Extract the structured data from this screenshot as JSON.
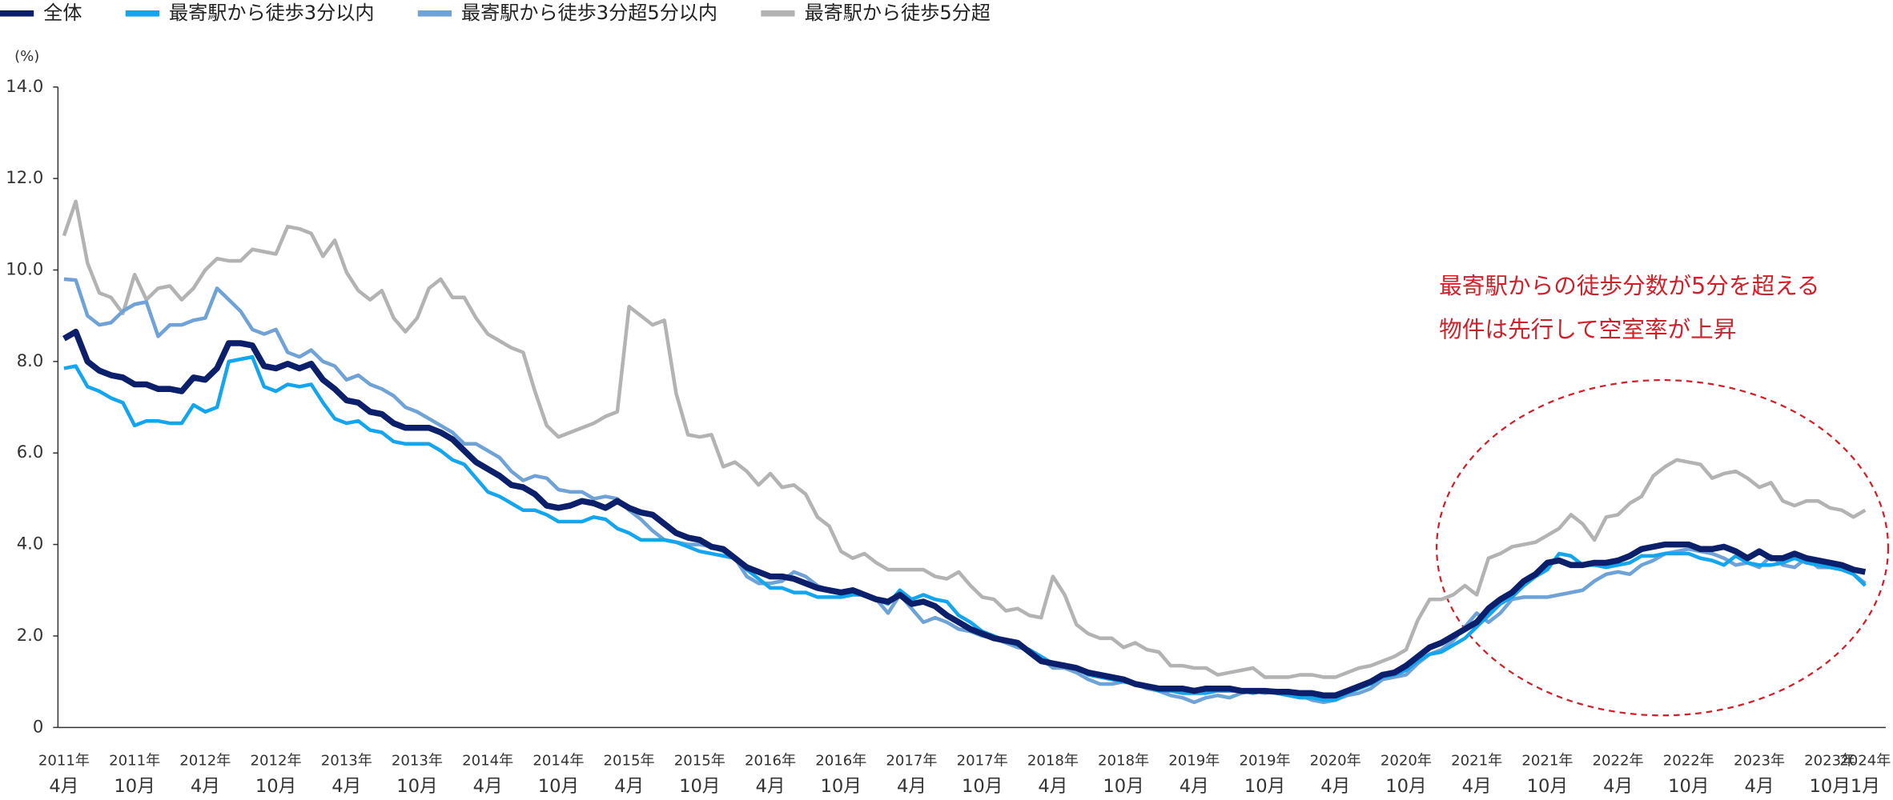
{
  "chart_data": {
    "type": "line",
    "y_unit": "(%)",
    "annotation": [
      "最寄駅からの徒歩分数が5分を超える",
      "物件は先行して空室率が上昇"
    ],
    "ylim": [
      0,
      14
    ],
    "yticks": [
      0,
      {
        "value": 2,
        "label": "2.0"
      },
      {
        "value": 4,
        "label": "4.0"
      },
      {
        "value": 6,
        "label": "6.0"
      },
      {
        "value": 8,
        "label": "8.0"
      },
      {
        "value": 10,
        "label": "10.0"
      },
      {
        "value": 12,
        "label": "12.0"
      },
      {
        "value": 14,
        "label": "14.0"
      }
    ],
    "categories": [
      "2011年\n4月",
      null,
      null,
      null,
      null,
      null,
      "2011年\n10月",
      null,
      null,
      null,
      null,
      null,
      "2012年\n4月",
      null,
      null,
      null,
      null,
      null,
      "2012年\n10月",
      null,
      null,
      null,
      null,
      null,
      "2013年\n4月",
      null,
      null,
      null,
      null,
      null,
      "2013年\n10月",
      null,
      null,
      null,
      null,
      null,
      "2014年\n4月",
      null,
      null,
      null,
      null,
      null,
      "2014年\n10月",
      null,
      null,
      null,
      null,
      null,
      "2015年\n4月",
      null,
      null,
      null,
      null,
      null,
      "2015年\n10月",
      null,
      null,
      null,
      null,
      null,
      "2016年\n4月",
      null,
      null,
      null,
      null,
      null,
      "2016年\n10月",
      null,
      null,
      null,
      null,
      null,
      "2017年\n4月",
      null,
      null,
      null,
      null,
      null,
      "2017年\n10月",
      null,
      null,
      null,
      null,
      null,
      "2018年\n4月",
      null,
      null,
      null,
      null,
      null,
      "2018年\n10月",
      null,
      null,
      null,
      null,
      null,
      "2019年\n4月",
      null,
      null,
      null,
      null,
      null,
      "2019年\n10月",
      null,
      null,
      null,
      null,
      null,
      "2020年\n4月",
      null,
      null,
      null,
      null,
      null,
      "2020年\n10月",
      null,
      null,
      null,
      null,
      null,
      "2021年\n4月",
      null,
      null,
      null,
      null,
      null,
      "2021年\n10月",
      null,
      null,
      null,
      null,
      null,
      "2022年\n4月",
      null,
      null,
      null,
      null,
      null,
      "2022年\n10月",
      null,
      null,
      null,
      null,
      null,
      "2023年\n4月",
      null,
      null,
      null,
      null,
      null,
      "2023年\n10月",
      null,
      null,
      "2024年\n1月"
    ],
    "series": [
      {
        "name": "全体",
        "color": "#0b1f6b",
        "width": 5,
        "values": [
          8.5,
          8.65,
          8.0,
          7.8,
          7.7,
          7.65,
          7.5,
          7.5,
          7.4,
          7.4,
          7.35,
          7.65,
          7.6,
          7.85,
          8.4,
          8.4,
          8.35,
          7.9,
          7.85,
          7.95,
          7.85,
          7.95,
          7.6,
          7.4,
          7.15,
          7.1,
          6.9,
          6.85,
          6.65,
          6.55,
          6.55,
          6.55,
          6.45,
          6.3,
          6.05,
          5.8,
          5.65,
          5.5,
          5.3,
          5.25,
          5.1,
          4.85,
          4.8,
          4.85,
          4.95,
          4.9,
          4.8,
          4.95,
          4.8,
          4.7,
          4.65,
          4.45,
          4.25,
          4.15,
          4.1,
          3.95,
          3.9,
          3.7,
          3.5,
          3.4,
          3.3,
          3.3,
          3.25,
          3.15,
          3.05,
          3.0,
          2.95,
          3.0,
          2.9,
          2.8,
          2.75,
          2.9,
          2.7,
          2.75,
          2.65,
          2.45,
          2.3,
          2.15,
          2.05,
          1.95,
          1.9,
          1.85,
          1.65,
          1.45,
          1.4,
          1.35,
          1.3,
          1.2,
          1.15,
          1.1,
          1.05,
          0.95,
          0.9,
          0.85,
          0.85,
          0.85,
          0.8,
          0.85,
          0.85,
          0.85,
          0.8,
          0.8,
          0.8,
          0.78,
          0.78,
          0.75,
          0.75,
          0.7,
          0.7,
          0.8,
          0.9,
          1.0,
          1.15,
          1.2,
          1.35,
          1.55,
          1.75,
          1.85,
          2.0,
          2.15,
          2.3,
          2.6,
          2.8,
          2.95,
          3.2,
          3.35,
          3.6,
          3.65,
          3.55,
          3.55,
          3.6,
          3.6,
          3.65,
          3.75,
          3.9,
          3.95,
          4.0,
          4.0,
          4.0,
          3.9,
          3.9,
          3.95,
          3.85,
          3.7,
          3.85,
          3.7,
          3.7,
          3.8,
          3.7,
          3.65,
          3.6,
          3.55,
          3.45,
          3.4
        ]
      },
      {
        "name": "最寄駅から徒歩3分以内",
        "color": "#13a6ee",
        "width": 3,
        "values": [
          7.85,
          7.9,
          7.45,
          7.35,
          7.2,
          7.1,
          6.6,
          6.7,
          6.7,
          6.65,
          6.65,
          7.05,
          6.9,
          7.0,
          8.0,
          8.05,
          8.1,
          7.45,
          7.35,
          7.5,
          7.45,
          7.5,
          7.1,
          6.75,
          6.65,
          6.7,
          6.5,
          6.45,
          6.25,
          6.2,
          6.2,
          6.2,
          6.05,
          5.85,
          5.75,
          5.45,
          5.15,
          5.05,
          4.9,
          4.75,
          4.75,
          4.65,
          4.5,
          4.5,
          4.5,
          4.6,
          4.55,
          4.35,
          4.25,
          4.1,
          4.1,
          4.1,
          4.05,
          3.95,
          3.85,
          3.8,
          3.75,
          3.7,
          3.45,
          3.25,
          3.05,
          3.05,
          2.95,
          2.95,
          2.85,
          2.85,
          2.85,
          2.9,
          2.9,
          2.8,
          2.7,
          3.0,
          2.8,
          2.9,
          2.8,
          2.75,
          2.45,
          2.3,
          2.1,
          2.0,
          1.9,
          1.8,
          1.7,
          1.55,
          1.4,
          1.35,
          1.3,
          1.15,
          1.1,
          1.05,
          1.0,
          0.95,
          0.9,
          0.8,
          0.8,
          0.75,
          0.75,
          0.75,
          0.8,
          0.8,
          0.8,
          0.75,
          0.8,
          0.75,
          0.7,
          0.65,
          0.65,
          0.6,
          0.6,
          0.75,
          0.85,
          0.95,
          1.1,
          1.15,
          1.25,
          1.45,
          1.6,
          1.65,
          1.8,
          1.95,
          2.2,
          2.45,
          2.7,
          2.85,
          3.1,
          3.3,
          3.45,
          3.8,
          3.75,
          3.55,
          3.55,
          3.5,
          3.55,
          3.6,
          3.75,
          3.75,
          3.8,
          3.8,
          3.8,
          3.7,
          3.65,
          3.55,
          3.75,
          3.6,
          3.55,
          3.55,
          3.6,
          3.7,
          3.6,
          3.55,
          3.5,
          3.45,
          3.35,
          3.1
        ]
      },
      {
        "name": "最寄駅から徒歩3分超5分以内",
        "color": "#6fa2d6",
        "width": 3,
        "values": [
          9.8,
          9.78,
          9.0,
          8.8,
          8.85,
          9.1,
          9.25,
          9.3,
          8.55,
          8.8,
          8.8,
          8.9,
          8.95,
          9.6,
          9.35,
          9.1,
          8.7,
          8.6,
          8.7,
          8.2,
          8.1,
          8.25,
          8.0,
          7.9,
          7.6,
          7.7,
          7.5,
          7.4,
          7.25,
          7.0,
          6.9,
          6.75,
          6.6,
          6.45,
          6.2,
          6.2,
          6.05,
          5.9,
          5.6,
          5.4,
          5.5,
          5.45,
          5.2,
          5.15,
          5.15,
          5.0,
          5.05,
          5.0,
          4.75,
          4.55,
          4.3,
          4.1,
          4.05,
          4.0,
          4.0,
          3.95,
          3.85,
          3.7,
          3.3,
          3.15,
          3.15,
          3.2,
          3.4,
          3.3,
          3.1,
          3.0,
          2.95,
          3.0,
          2.9,
          2.8,
          2.5,
          2.9,
          2.6,
          2.3,
          2.4,
          2.3,
          2.15,
          2.1,
          2.0,
          1.95,
          1.85,
          1.75,
          1.7,
          1.5,
          1.3,
          1.3,
          1.2,
          1.05,
          0.95,
          0.95,
          1.0,
          0.95,
          0.85,
          0.8,
          0.7,
          0.65,
          0.55,
          0.65,
          0.7,
          0.65,
          0.75,
          0.8,
          0.75,
          0.8,
          0.7,
          0.7,
          0.6,
          0.55,
          0.6,
          0.7,
          0.75,
          0.85,
          1.05,
          1.1,
          1.15,
          1.4,
          1.6,
          1.7,
          1.9,
          2.2,
          2.5,
          2.3,
          2.5,
          2.8,
          2.85,
          2.85,
          2.85,
          2.9,
          2.95,
          3.0,
          3.2,
          3.35,
          3.4,
          3.35,
          3.55,
          3.65,
          3.8,
          3.85,
          3.9,
          3.85,
          3.8,
          3.7,
          3.55,
          3.6,
          3.5,
          3.75,
          3.55,
          3.5,
          3.7,
          3.5,
          3.5,
          3.45,
          3.35,
          3.15
        ]
      },
      {
        "name": "最寄駅から徒歩5分超",
        "color": "#b3b3b3",
        "width": 3,
        "values": [
          10.75,
          11.5,
          10.15,
          9.5,
          9.4,
          9.05,
          9.9,
          9.35,
          9.6,
          9.65,
          9.35,
          9.6,
          10.0,
          10.25,
          10.2,
          10.2,
          10.45,
          10.4,
          10.35,
          10.95,
          10.9,
          10.8,
          10.3,
          10.65,
          9.95,
          9.55,
          9.35,
          9.55,
          8.95,
          8.65,
          8.95,
          9.6,
          9.8,
          9.4,
          9.4,
          8.95,
          8.6,
          8.45,
          8.3,
          8.2,
          7.35,
          6.6,
          6.35,
          6.45,
          6.55,
          6.65,
          6.8,
          6.9,
          9.2,
          9.0,
          8.8,
          8.9,
          7.3,
          6.4,
          6.35,
          6.4,
          5.7,
          5.8,
          5.6,
          5.3,
          5.55,
          5.25,
          5.3,
          5.1,
          4.6,
          4.4,
          3.85,
          3.7,
          3.8,
          3.6,
          3.45,
          3.45,
          3.45,
          3.45,
          3.3,
          3.25,
          3.4,
          3.1,
          2.85,
          2.8,
          2.55,
          2.6,
          2.45,
          2.4,
          3.3,
          2.9,
          2.25,
          2.05,
          1.95,
          1.95,
          1.75,
          1.85,
          1.7,
          1.65,
          1.35,
          1.35,
          1.3,
          1.3,
          1.15,
          1.2,
          1.25,
          1.3,
          1.1,
          1.1,
          1.1,
          1.15,
          1.15,
          1.1,
          1.1,
          1.2,
          1.3,
          1.35,
          1.45,
          1.55,
          1.7,
          2.35,
          2.8,
          2.8,
          2.9,
          3.1,
          2.9,
          3.7,
          3.8,
          3.95,
          4.0,
          4.05,
          4.2,
          4.35,
          4.65,
          4.45,
          4.1,
          4.6,
          4.65,
          4.9,
          5.05,
          5.5,
          5.7,
          5.85,
          5.8,
          5.75,
          5.45,
          5.55,
          5.6,
          5.45,
          5.25,
          5.35,
          4.95,
          4.85,
          4.95,
          4.95,
          4.8,
          4.75,
          4.6,
          4.75
        ]
      }
    ]
  }
}
